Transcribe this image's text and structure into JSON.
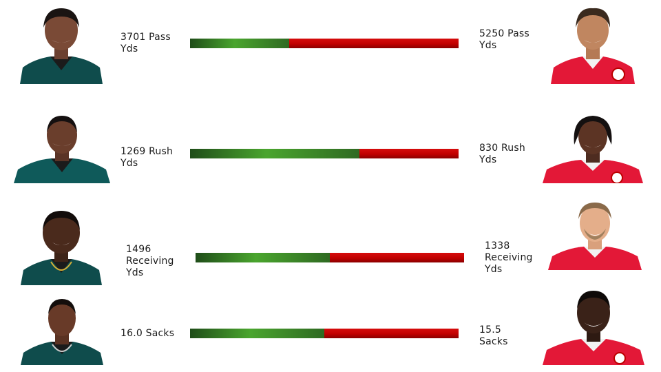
{
  "colors": {
    "eagles_jersey": "#0f4c4c",
    "chiefs_jersey": "#e31837",
    "bar_left_green": "#4aa52e",
    "bar_right_red": "#c10000"
  },
  "rows": [
    {
      "left_player": {
        "team": "eagles"
      },
      "left_stat": "3701 Pass Yds",
      "right_stat": "5250 Pass Yds",
      "right_player": {
        "team": "chiefs"
      },
      "left_share": 0.37
    },
    {
      "left_player": {
        "team": "eagles"
      },
      "left_stat": "1269 Rush Yds",
      "right_stat": "830 Rush Yds",
      "right_player": {
        "team": "chiefs"
      },
      "left_share": 0.63
    },
    {
      "left_player": {
        "team": "eagles"
      },
      "left_stat": "1496 Receiving Yds",
      "right_stat": "1338 Receiving Yds",
      "right_player": {
        "team": "chiefs"
      },
      "left_share": 0.5
    },
    {
      "left_player": {
        "team": "eagles"
      },
      "left_stat": "16.0 Sacks",
      "right_stat": "15.5 Sacks",
      "right_player": {
        "team": "chiefs"
      },
      "left_share": 0.5
    }
  ]
}
